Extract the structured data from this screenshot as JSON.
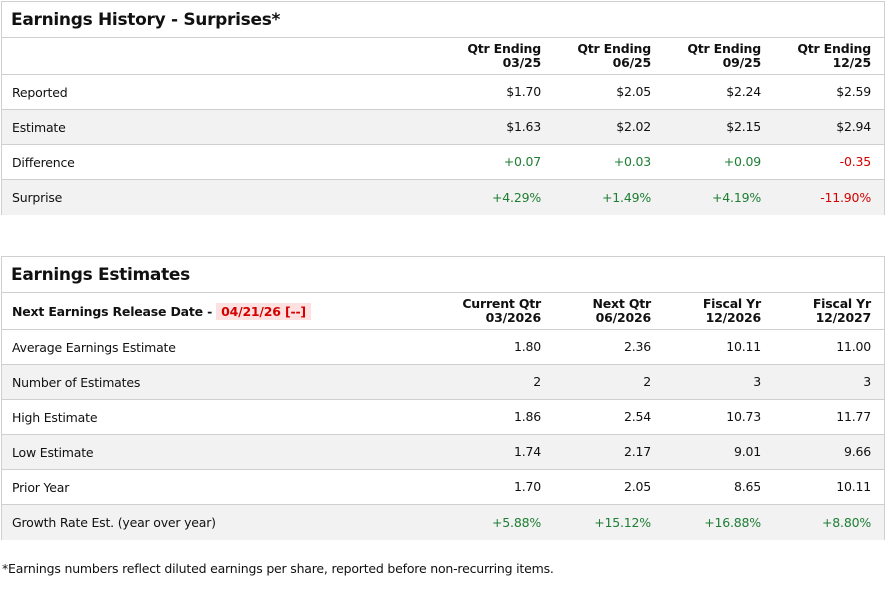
{
  "history": {
    "title": "Earnings History - Surprises*",
    "columns": [
      {
        "line1": "Qtr Ending",
        "line2": "03/25"
      },
      {
        "line1": "Qtr Ending",
        "line2": "06/25"
      },
      {
        "line1": "Qtr Ending",
        "line2": "09/25"
      },
      {
        "line1": "Qtr Ending",
        "line2": "12/25"
      }
    ],
    "rows": [
      {
        "label": "Reported",
        "values": [
          "$1.70",
          "$2.05",
          "$2.24",
          "$2.59"
        ],
        "signs": [
          "",
          "",
          "",
          ""
        ]
      },
      {
        "label": "Estimate",
        "values": [
          "$1.63",
          "$2.02",
          "$2.15",
          "$2.94"
        ],
        "signs": [
          "",
          "",
          "",
          ""
        ]
      },
      {
        "label": "Difference",
        "values": [
          "+0.07",
          "+0.03",
          "+0.09",
          "-0.35"
        ],
        "signs": [
          "pos",
          "pos",
          "pos",
          "neg"
        ]
      },
      {
        "label": "Surprise",
        "values": [
          "+4.29%",
          "+1.49%",
          "+4.19%",
          "-11.90%"
        ],
        "signs": [
          "pos",
          "pos",
          "pos",
          "neg"
        ]
      }
    ]
  },
  "estimates": {
    "title": "Earnings Estimates",
    "release_label": "Next Earnings Release Date -",
    "release_date": "04/21/26 [--]",
    "columns": [
      {
        "line1": "Current Qtr",
        "line2": "03/2026"
      },
      {
        "line1": "Next Qtr",
        "line2": "06/2026"
      },
      {
        "line1": "Fiscal Yr",
        "line2": "12/2026"
      },
      {
        "line1": "Fiscal Yr",
        "line2": "12/2027"
      }
    ],
    "rows": [
      {
        "label": "Average Earnings Estimate",
        "values": [
          "1.80",
          "2.36",
          "10.11",
          "11.00"
        ],
        "signs": [
          "",
          "",
          "",
          ""
        ]
      },
      {
        "label": "Number of Estimates",
        "values": [
          "2",
          "2",
          "3",
          "3"
        ],
        "signs": [
          "",
          "",
          "",
          ""
        ]
      },
      {
        "label": "High Estimate",
        "values": [
          "1.86",
          "2.54",
          "10.73",
          "11.77"
        ],
        "signs": [
          "",
          "",
          "",
          ""
        ]
      },
      {
        "label": "Low Estimate",
        "values": [
          "1.74",
          "2.17",
          "9.01",
          "9.66"
        ],
        "signs": [
          "",
          "",
          "",
          ""
        ]
      },
      {
        "label": "Prior Year",
        "values": [
          "1.70",
          "2.05",
          "8.65",
          "10.11"
        ],
        "signs": [
          "",
          "",
          "",
          ""
        ]
      },
      {
        "label": "Growth Rate Est. (year over year)",
        "values": [
          "+5.88%",
          "+15.12%",
          "+16.88%",
          "+8.80%"
        ],
        "signs": [
          "pos",
          "pos",
          "pos",
          "pos"
        ]
      }
    ]
  },
  "colors": {
    "positive": "#1e7e34",
    "negative": "#d40000",
    "alt_row": "#f2f2f2"
  },
  "footnote": "*Earnings numbers reflect diluted earnings per share, reported before non-recurring items."
}
